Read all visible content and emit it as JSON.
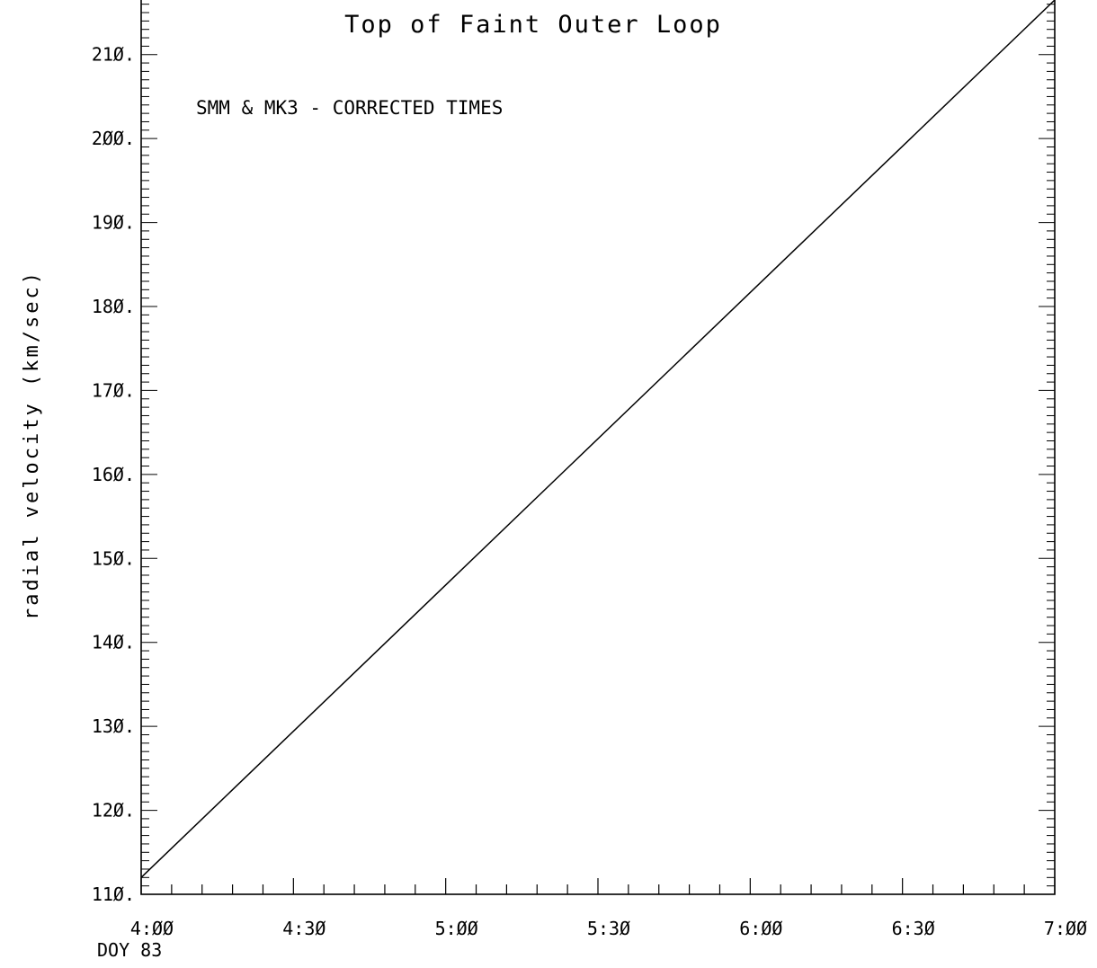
{
  "chart_data": {
    "type": "line",
    "title": "Top of Faint Outer Loop",
    "annotation": "SMM & MK3 - CORRECTED TIMES",
    "ylabel": "radial velocity (km/sec)",
    "xlabel_sub": "DOY 83",
    "x_ticks": [
      "4:ØØ",
      "4:3Ø",
      "5:ØØ",
      "5:3Ø",
      "6:ØØ",
      "6:3Ø",
      "7:ØØ"
    ],
    "y_ticks": [
      "11Ø.",
      "12Ø.",
      "13Ø.",
      "14Ø.",
      "15Ø.",
      "16Ø.",
      "17Ø.",
      "18Ø.",
      "19Ø.",
      "2ØØ.",
      "21Ø."
    ],
    "y_tick_values": [
      110,
      120,
      130,
      140,
      150,
      160,
      170,
      180,
      190,
      200,
      210
    ],
    "xlim_hours": [
      4.0,
      7.0
    ],
    "ylim": [
      110,
      216.5
    ],
    "series": [
      {
        "x": [
          "4:00",
          "7:00"
        ],
        "values": [
          112,
          216.5
        ]
      }
    ]
  }
}
